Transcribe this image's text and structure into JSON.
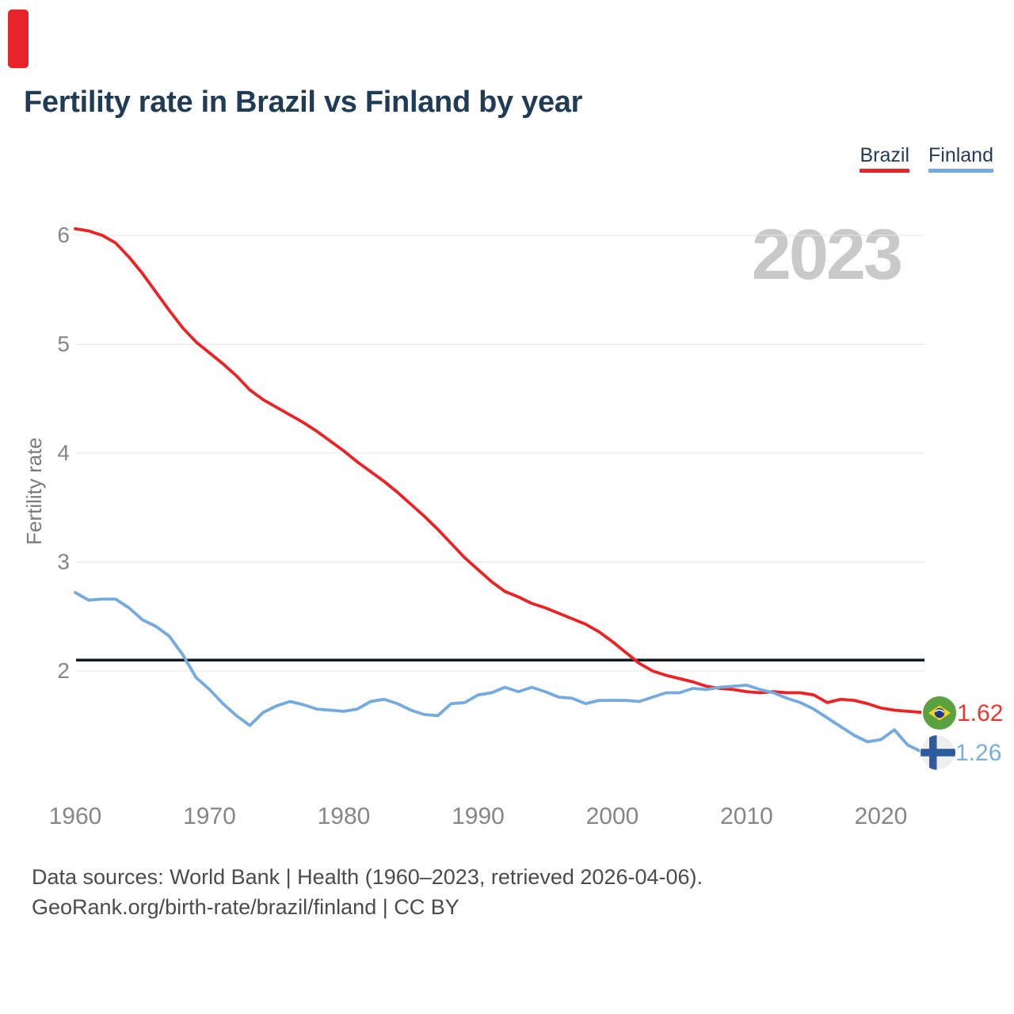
{
  "header": {
    "title": "Fertility rate in Brazil vs Finland by year",
    "accent_bar_color": "#e8242a"
  },
  "watermark": "2023",
  "footer": {
    "line1": "Data sources: World Bank | Health (1960–2023, retrieved 2026-04-06).",
    "line2": "GeoRank.org/birth-rate/brazil/finland | CC BY"
  },
  "chart_data": {
    "type": "line",
    "title": "Fertility rate in Brazil vs Finland by year",
    "xlabel": "",
    "ylabel": "Fertility rate",
    "grid": true,
    "legend_position": "top-right",
    "xlim": [
      1960,
      2023
    ],
    "ylim": [
      1.1,
      6.2
    ],
    "x_ticks": [
      1960,
      1970,
      1980,
      1990,
      2000,
      2010,
      2020
    ],
    "y_ticks": [
      2,
      3,
      4,
      5,
      6
    ],
    "reference_line": {
      "value": 2.1,
      "color": "#101820"
    },
    "grid_color": "#e7e7e7",
    "x": [
      1960,
      1961,
      1962,
      1963,
      1964,
      1965,
      1966,
      1967,
      1968,
      1969,
      1970,
      1971,
      1972,
      1973,
      1974,
      1975,
      1976,
      1977,
      1978,
      1979,
      1980,
      1981,
      1982,
      1983,
      1984,
      1985,
      1986,
      1987,
      1988,
      1989,
      1990,
      1991,
      1992,
      1993,
      1994,
      1995,
      1996,
      1997,
      1998,
      1999,
      2000,
      2001,
      2002,
      2003,
      2004,
      2005,
      2006,
      2007,
      2008,
      2009,
      2010,
      2011,
      2012,
      2013,
      2014,
      2015,
      2016,
      2017,
      2018,
      2019,
      2020,
      2021,
      2022,
      2023
    ],
    "series": [
      {
        "name": "Brazil",
        "color": "#ed2224",
        "end_label": "1.62",
        "values": [
          6.06,
          6.04,
          6.0,
          5.93,
          5.8,
          5.65,
          5.48,
          5.31,
          5.15,
          5.02,
          4.92,
          4.82,
          4.71,
          4.58,
          4.49,
          4.42,
          4.35,
          4.28,
          4.2,
          4.11,
          4.02,
          3.92,
          3.83,
          3.74,
          3.64,
          3.53,
          3.42,
          3.3,
          3.17,
          3.04,
          2.93,
          2.82,
          2.73,
          2.68,
          2.62,
          2.58,
          2.53,
          2.48,
          2.43,
          2.36,
          2.27,
          2.17,
          2.07,
          2.0,
          1.96,
          1.93,
          1.9,
          1.86,
          1.84,
          1.83,
          1.81,
          1.8,
          1.81,
          1.8,
          1.8,
          1.78,
          1.71,
          1.74,
          1.73,
          1.7,
          1.66,
          1.64,
          1.63,
          1.62
        ]
      },
      {
        "name": "Finland",
        "color": "#74aadf",
        "end_label": "1.26",
        "values": [
          2.72,
          2.65,
          2.66,
          2.66,
          2.58,
          2.47,
          2.41,
          2.32,
          2.15,
          1.94,
          1.83,
          1.7,
          1.59,
          1.5,
          1.62,
          1.68,
          1.72,
          1.69,
          1.65,
          1.64,
          1.63,
          1.65,
          1.72,
          1.74,
          1.7,
          1.64,
          1.6,
          1.59,
          1.7,
          1.71,
          1.78,
          1.8,
          1.85,
          1.81,
          1.85,
          1.81,
          1.76,
          1.75,
          1.7,
          1.73,
          1.73,
          1.73,
          1.72,
          1.76,
          1.8,
          1.8,
          1.84,
          1.83,
          1.85,
          1.86,
          1.87,
          1.83,
          1.8,
          1.75,
          1.71,
          1.65,
          1.57,
          1.49,
          1.41,
          1.35,
          1.37,
          1.46,
          1.32,
          1.26
        ]
      }
    ]
  }
}
